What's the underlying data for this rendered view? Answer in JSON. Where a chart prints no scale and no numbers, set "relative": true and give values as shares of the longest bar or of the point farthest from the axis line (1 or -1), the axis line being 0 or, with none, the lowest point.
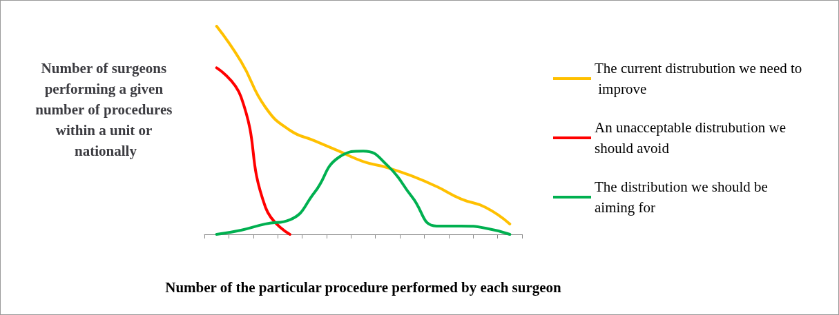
{
  "chart_data": {
    "type": "line",
    "relative": true,
    "xlabel": "Number of the particular procedure performed by each surgeon",
    "ylabel": "Number of surgeons performing a given number of procedures within a unit or nationally",
    "categories": [
      null,
      null,
      null,
      null,
      null,
      null,
      null,
      null,
      null,
      null,
      null,
      null,
      null
    ],
    "series": [
      {
        "name": "The current distrubution we need to improve",
        "color": "#ffc000",
        "values": [
          1.0,
          0.83,
          0.61,
          0.5,
          0.45,
          0.4,
          0.35,
          0.32,
          0.28,
          0.23,
          0.17,
          0.13,
          0.05
        ]
      },
      {
        "name": "An unacceptable distrubution we should avoid",
        "color": "#ff0000",
        "values": [
          0.8,
          0.66,
          0.13,
          0,
          null,
          null,
          null,
          null,
          null,
          null,
          null,
          null,
          null
        ]
      },
      {
        "name": "The distribution we should be aiming for",
        "color": "#00b050",
        "values": [
          0,
          0.02,
          0.05,
          0.07,
          0.2,
          0.37,
          0.4,
          0.33,
          0.18,
          0.04,
          0.04,
          0.03,
          0
        ]
      }
    ],
    "legend": "right",
    "grid": false,
    "marker": "none",
    "line_style": "solid"
  }
}
